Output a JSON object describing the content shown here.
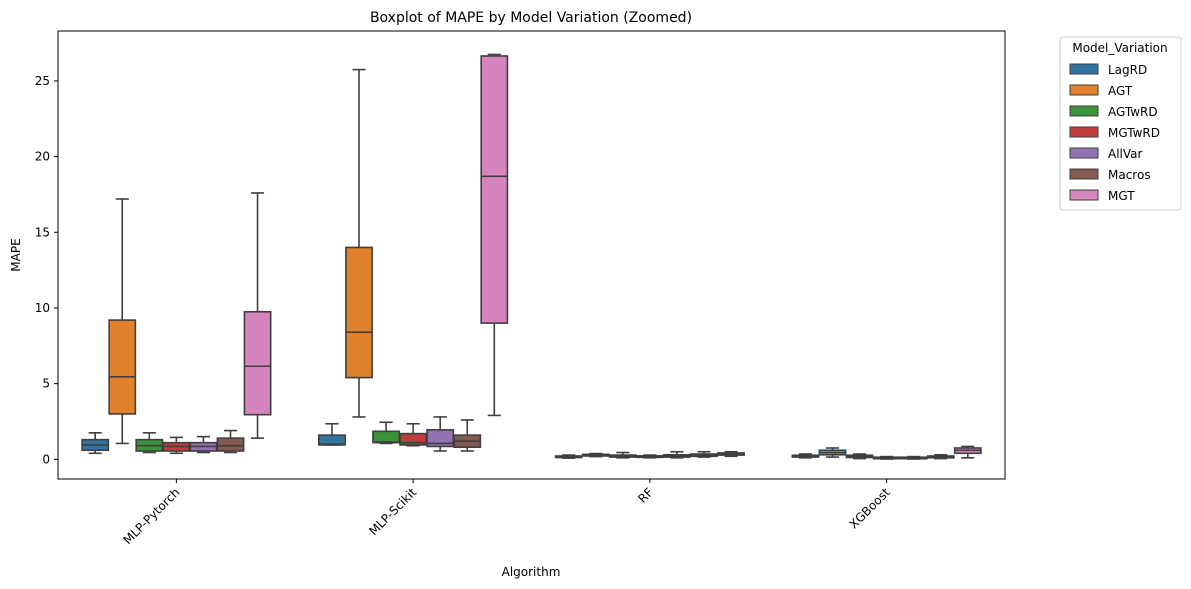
{
  "chart_data": {
    "type": "boxplot",
    "title": "Boxplot of MAPE by Model Variation (Zoomed)",
    "xlabel": "Algorithm",
    "ylabel": "MAPE",
    "ylim": [
      -1.3,
      28.3
    ],
    "yticks": [
      0,
      5,
      10,
      15,
      20,
      25
    ],
    "categories": [
      "MLP-Pytorch",
      "MLP-Scikit",
      "RF",
      "XGBoost"
    ],
    "legend": {
      "title": "Model_Variation",
      "placement": "outside-top-right"
    },
    "grid": false,
    "series": [
      {
        "name": "LagRD",
        "color": "#3274a1",
        "boxes": [
          {
            "whislo": 0.4,
            "q1": 0.6,
            "med": 0.95,
            "q3": 1.3,
            "whishi": 1.75
          },
          {
            "whislo": 0.95,
            "q1": 0.95,
            "med": 1.0,
            "q3": 1.6,
            "whishi": 2.35
          },
          {
            "whislo": 0.08,
            "q1": 0.13,
            "med": 0.18,
            "q3": 0.22,
            "whishi": 0.28
          },
          {
            "whislo": 0.1,
            "q1": 0.15,
            "med": 0.2,
            "q3": 0.27,
            "whishi": 0.35
          }
        ]
      },
      {
        "name": "AGT",
        "color": "#e1812c",
        "boxes": [
          {
            "whislo": 1.05,
            "q1": 3.0,
            "med": 5.45,
            "q3": 9.2,
            "whishi": 17.2
          },
          {
            "whislo": 2.8,
            "q1": 5.4,
            "med": 8.4,
            "q3": 14.0,
            "whishi": 25.75
          },
          {
            "whislo": 0.18,
            "q1": 0.22,
            "med": 0.28,
            "q3": 0.33,
            "whishi": 0.38
          },
          {
            "whislo": 0.15,
            "q1": 0.3,
            "med": 0.45,
            "q3": 0.6,
            "whishi": 0.75
          }
        ]
      },
      {
        "name": "AGTwRD",
        "color": "#3a923a",
        "boxes": [
          {
            "whislo": 0.45,
            "q1": 0.55,
            "med": 0.9,
            "q3": 1.3,
            "whishi": 1.75
          },
          {
            "whislo": 1.05,
            "q1": 1.1,
            "med": 1.15,
            "q3": 1.85,
            "whishi": 2.45
          },
          {
            "whislo": 0.1,
            "q1": 0.15,
            "med": 0.2,
            "q3": 0.28,
            "whishi": 0.45
          },
          {
            "whislo": 0.05,
            "q1": 0.12,
            "med": 0.2,
            "q3": 0.27,
            "whishi": 0.35
          }
        ]
      },
      {
        "name": "MGTwRD",
        "color": "#c03d3e",
        "boxes": [
          {
            "whislo": 0.4,
            "q1": 0.55,
            "med": 0.85,
            "q3": 1.1,
            "whishi": 1.45
          },
          {
            "whislo": 0.9,
            "q1": 0.95,
            "med": 1.1,
            "q3": 1.7,
            "whishi": 2.35
          },
          {
            "whislo": 0.1,
            "q1": 0.14,
            "med": 0.18,
            "q3": 0.23,
            "whishi": 0.28
          },
          {
            "whislo": 0.02,
            "q1": 0.06,
            "med": 0.1,
            "q3": 0.14,
            "whishi": 0.18
          }
        ]
      },
      {
        "name": "AllVar",
        "color": "#9372b2",
        "boxes": [
          {
            "whislo": 0.45,
            "q1": 0.55,
            "med": 0.85,
            "q3": 1.1,
            "whishi": 1.5
          },
          {
            "whislo": 0.55,
            "q1": 0.85,
            "med": 1.05,
            "q3": 1.95,
            "whishi": 2.8
          },
          {
            "whislo": 0.1,
            "q1": 0.15,
            "med": 0.22,
            "q3": 0.3,
            "whishi": 0.5
          },
          {
            "whislo": 0.02,
            "q1": 0.06,
            "med": 0.1,
            "q3": 0.14,
            "whishi": 0.18
          }
        ]
      },
      {
        "name": "Macros",
        "color": "#845b53",
        "boxes": [
          {
            "whislo": 0.45,
            "q1": 0.55,
            "med": 0.9,
            "q3": 1.4,
            "whishi": 1.9
          },
          {
            "whislo": 0.55,
            "q1": 0.8,
            "med": 1.2,
            "q3": 1.6,
            "whishi": 2.6
          },
          {
            "whislo": 0.15,
            "q1": 0.2,
            "med": 0.28,
            "q3": 0.35,
            "whishi": 0.5
          },
          {
            "whislo": 0.05,
            "q1": 0.1,
            "med": 0.16,
            "q3": 0.22,
            "whishi": 0.3
          }
        ]
      },
      {
        "name": "MGT",
        "color": "#d684bd",
        "boxes": [
          {
            "whislo": 1.4,
            "q1": 2.95,
            "med": 6.15,
            "q3": 9.75,
            "whishi": 17.6
          },
          {
            "whislo": 2.9,
            "q1": 9.0,
            "med": 18.7,
            "q3": 26.65,
            "whishi": 26.75
          },
          {
            "whislo": 0.2,
            "q1": 0.28,
            "med": 0.35,
            "q3": 0.42,
            "whishi": 0.5
          },
          {
            "whislo": 0.1,
            "q1": 0.4,
            "med": 0.6,
            "q3": 0.75,
            "whishi": 0.85
          }
        ]
      }
    ]
  }
}
